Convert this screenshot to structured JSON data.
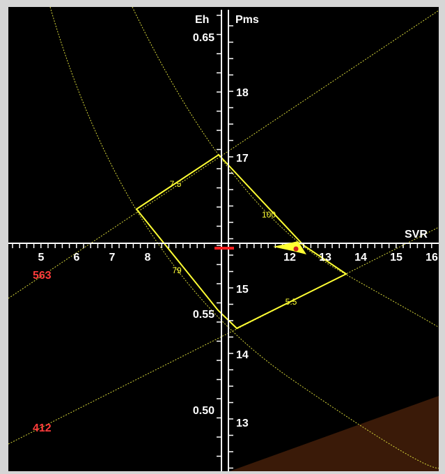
{
  "chart_data": {
    "type": "scatter",
    "title": "",
    "axes": {
      "svr": {
        "label": "SVR",
        "ticks": [
          "5",
          "6",
          "7",
          "8",
          "12",
          "13",
          "14",
          "15",
          "16"
        ]
      },
      "eh": {
        "label": "Eh",
        "ticks": [
          "0.65",
          "0.55",
          "0.50"
        ]
      },
      "pms": {
        "label": "Pms",
        "ticks": [
          "18",
          "17",
          "15",
          "14",
          "13"
        ]
      }
    },
    "side_values": [
      "563",
      "412"
    ],
    "quadrilateral_labels": [
      "7.5",
      "100",
      "79",
      "5.5"
    ],
    "current_point": {
      "svr": 12.1
    },
    "colors": {
      "background": "#000000",
      "frame": "#d6d6d6",
      "axes": "#ffffff",
      "guide_lines": "#d8d83a",
      "quadrilateral": "#ffff33",
      "marker": "#ffff33",
      "marker_dot": "#d02020",
      "reference_bar": "#ff2020",
      "side_values": "#ff3b3b",
      "shaded_region": "#3a1a08"
    }
  }
}
